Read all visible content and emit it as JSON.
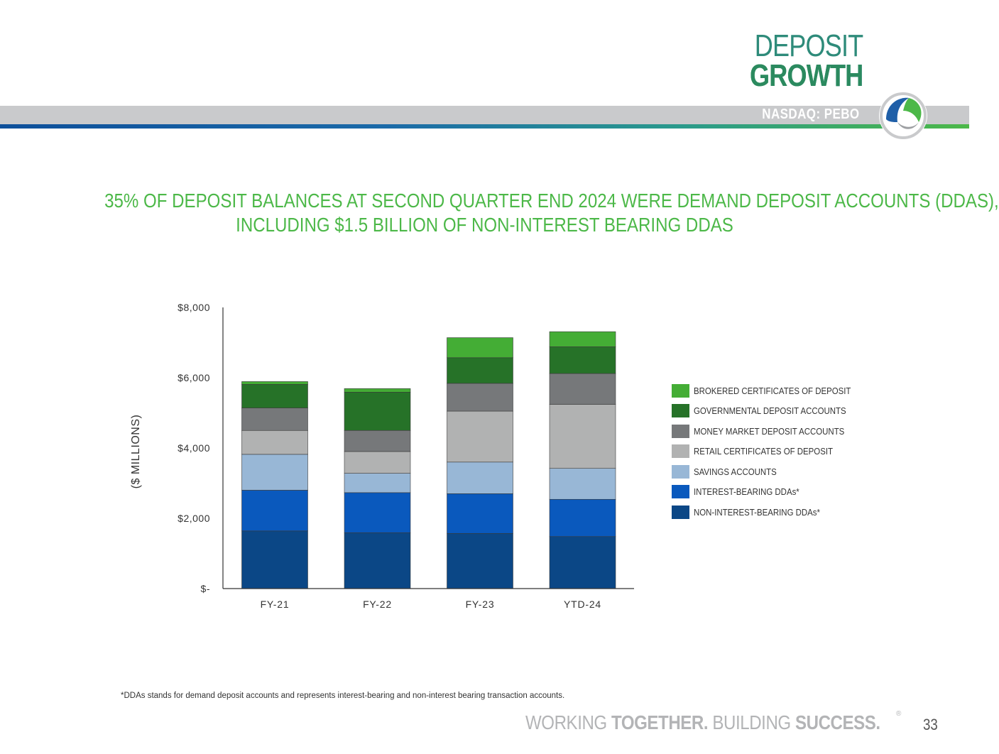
{
  "header": {
    "title_line1": "DEPOSIT",
    "title_line2": "GROWTH",
    "ticker": "NASDAQ: PEBO",
    "logo": "peoples-bancorp-logo"
  },
  "headline": {
    "line1": "35% OF DEPOSIT BALANCES AT SECOND QUARTER END 2024 WERE DEMAND DEPOSIT ACCOUNTS (DDAS),",
    "line2": "INCLUDING $1.5 BILLION OF NON-INTEREST BEARING DDAS"
  },
  "chart_data": {
    "type": "bar",
    "stacked": true,
    "categories": [
      "FY-21",
      "FY-22",
      "FY-23",
      "YTD-24"
    ],
    "ylabel": "($ MILLIONS)",
    "ylim": [
      0,
      8000
    ],
    "yticks": [
      0,
      2000,
      4000,
      6000,
      8000
    ],
    "ytick_labels": [
      "$-",
      "$2,000",
      "$4,000",
      "$6,000",
      "$8,000"
    ],
    "series": [
      {
        "name": "NON-INTEREST-BEARING DDAs*",
        "color": "#0b4786",
        "values": [
          1640,
          1590,
          1570,
          1480
        ]
      },
      {
        "name": "INTEREST-BEARING DDAs*",
        "color": "#0a59bd",
        "values": [
          1160,
          1140,
          1130,
          1060
        ]
      },
      {
        "name": "SAVINGS ACCOUNTS",
        "color": "#98b7d6",
        "values": [
          1020,
          550,
          900,
          880
        ]
      },
      {
        "name": "RETAIL CERTIFICATES OF DEPOSIT",
        "color": "#b1b2b2",
        "values": [
          680,
          620,
          1450,
          1820
        ]
      },
      {
        "name": "MONEY MARKET DEPOSIT ACCOUNTS",
        "color": "#76787a",
        "values": [
          640,
          600,
          790,
          880
        ]
      },
      {
        "name": "GOVERNMENTAL DEPOSIT ACCOUNTS",
        "color": "#267228",
        "values": [
          670,
          1090,
          730,
          760
        ]
      },
      {
        "name": "BROKERED CERTIFICATES OF DEPOSIT",
        "color": "#44ad35",
        "values": [
          80,
          100,
          570,
          430
        ]
      }
    ],
    "legend_position": "right"
  },
  "footnote": "*DDAs stands for demand deposit accounts and represents interest-bearing and non-interest bearing transaction accounts.",
  "footer": {
    "tag_w1": "WORKING ",
    "tag_w2": "TOGETHER.",
    "tag_w3": " BUILDING ",
    "tag_w4": "SUCCESS.",
    "registered": "®",
    "page_number": "33"
  }
}
